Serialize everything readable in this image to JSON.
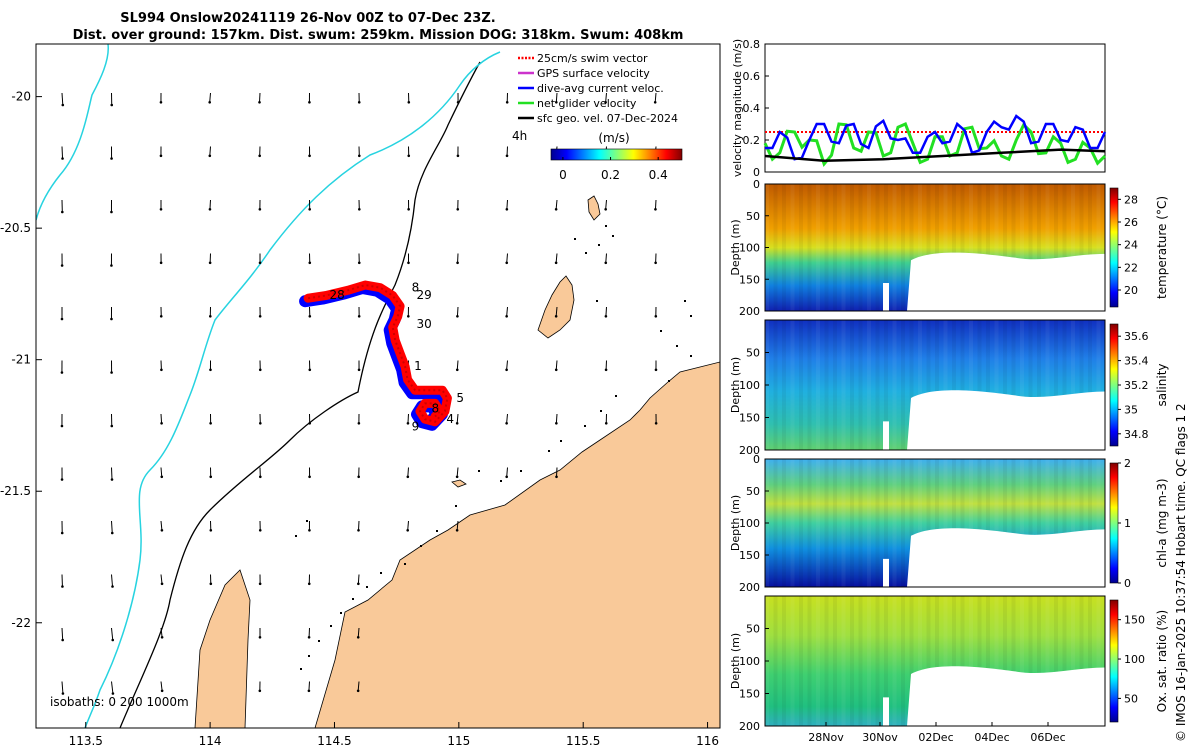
{
  "header": {
    "title_line1": "SL994 Onslow20241119 26-Nov 00Z to 07-Dec 23Z.",
    "title_line2": "Dist. over ground: 157km. Dist. swum: 259km. Mission DOG: 318km. Swum: 408km"
  },
  "side_credit": "© IMOS 16-Jan-2025 10:37:54 Hobart time. QC flags 1  2",
  "colors": {
    "land": "#f9c999",
    "coast_line": "#000000",
    "isobath_200": "#000000",
    "isobath_1000": "#27d3e0",
    "track_swim": "#ff0000",
    "track_current": "#0000ff",
    "velocity_green": "#22e022"
  },
  "chart_data": [
    {
      "type": "map",
      "name": "track-map",
      "x_ticks": [
        "113.5",
        "114",
        "114.5",
        "115",
        "115.5",
        "116"
      ],
      "xlim": [
        113.3,
        116.05
      ],
      "y_ticks": [
        "-20",
        "-20.5",
        "-21",
        "-21.5",
        "-22"
      ],
      "ylim": [
        -22.4,
        -19.8
      ],
      "legend": {
        "items": [
          {
            "label": "25cm/s swim vector",
            "color": "#ff0000",
            "style": "dotted"
          },
          {
            "label": "GPS surface velocity",
            "color": "#cc33cc",
            "style": "solid"
          },
          {
            "label": "dive-avg current veloc.",
            "color": "#0000ff",
            "style": "solid"
          },
          {
            "label": "net glider velocity",
            "color": "#22e022",
            "style": "solid"
          },
          {
            "label": "sfc geo. vel. 07-Dec-2024",
            "color": "#000000",
            "style": "solid"
          }
        ],
        "interval_label": "4h"
      },
      "colorbar": {
        "label": "(m/s)",
        "ticks": [
          "0",
          "0.2",
          "0.4"
        ],
        "range": [
          -0.05,
          0.5
        ]
      },
      "isobath_label": "isobaths: 0   200  1000m",
      "day_labels": [
        {
          "text": "28",
          "lon": 114.48,
          "lat": -20.77
        },
        {
          "text": "8",
          "lon": 114.81,
          "lat": -20.74
        },
        {
          "text": "29",
          "lon": 114.83,
          "lat": -20.77
        },
        {
          "text": "30",
          "lon": 114.83,
          "lat": -20.88
        },
        {
          "text": "1",
          "lon": 114.82,
          "lat": -21.04
        },
        {
          "text": "5",
          "lon": 114.99,
          "lat": -21.16
        },
        {
          "text": "8",
          "lon": 114.89,
          "lat": -21.2
        },
        {
          "text": "4",
          "lon": 114.95,
          "lat": -21.24
        },
        {
          "text": "9",
          "lon": 114.81,
          "lat": -21.27
        }
      ],
      "track": [
        [
          114.39,
          -20.77
        ],
        [
          114.46,
          -20.76
        ],
        [
          114.55,
          -20.74
        ],
        [
          114.62,
          -20.72
        ],
        [
          114.68,
          -20.73
        ],
        [
          114.73,
          -20.76
        ],
        [
          114.76,
          -20.8
        ],
        [
          114.75,
          -20.84
        ],
        [
          114.73,
          -20.88
        ],
        [
          114.74,
          -20.93
        ],
        [
          114.76,
          -20.98
        ],
        [
          114.78,
          -21.03
        ],
        [
          114.79,
          -21.08
        ],
        [
          114.82,
          -21.12
        ],
        [
          114.87,
          -21.12
        ],
        [
          114.93,
          -21.12
        ],
        [
          114.95,
          -21.15
        ],
        [
          114.94,
          -21.2
        ],
        [
          114.9,
          -21.24
        ],
        [
          114.86,
          -21.23
        ],
        [
          114.84,
          -21.2
        ],
        [
          114.86,
          -21.17
        ],
        [
          114.9,
          -21.17
        ],
        [
          114.92,
          -21.2
        ],
        [
          114.9,
          -21.22
        ]
      ]
    },
    {
      "type": "line",
      "name": "velocity-magnitude",
      "ylabel": "velocity magnitude (m/s)",
      "y_ticks": [
        "0",
        "0.2",
        "0.4",
        "0.6",
        "0.8"
      ],
      "ylim": [
        0,
        0.8
      ],
      "xlim": [
        26,
        37.5
      ],
      "series": [
        {
          "name": "25cm/s swim vector",
          "color": "#ff0000",
          "values": [
            0.25,
            0.25
          ]
        },
        {
          "name": "dive-avg current veloc.",
          "color": "#0000ff",
          "x": [
            26,
            26.5,
            27,
            27.5,
            28,
            28.5,
            29,
            29.5,
            30,
            30.5,
            31,
            31.5,
            32,
            32.5,
            33,
            33.5,
            34,
            34.5,
            35,
            35.5,
            36,
            36.5,
            37,
            37.5
          ],
          "values": [
            0.15,
            0.25,
            0.08,
            0.2,
            0.3,
            0.18,
            0.3,
            0.15,
            0.32,
            0.2,
            0.12,
            0.22,
            0.18,
            0.3,
            0.12,
            0.25,
            0.28,
            0.35,
            0.18,
            0.3,
            0.2,
            0.28,
            0.15,
            0.25
          ]
        },
        {
          "name": "net glider velocity",
          "color": "#22e022",
          "x": [
            26,
            26.5,
            27,
            27.5,
            28,
            28.5,
            29,
            29.5,
            30,
            30.5,
            31,
            31.5,
            32,
            32.5,
            33,
            33.5,
            34,
            34.5,
            35,
            35.5,
            36,
            36.5,
            37,
            37.5
          ],
          "values": [
            0.18,
            0.12,
            0.25,
            0.2,
            0.05,
            0.3,
            0.15,
            0.25,
            0.1,
            0.28,
            0.18,
            0.08,
            0.22,
            0.12,
            0.28,
            0.15,
            0.1,
            0.2,
            0.25,
            0.12,
            0.18,
            0.08,
            0.15,
            0.1
          ]
        },
        {
          "name": "sfc geo. vel.",
          "color": "#000000",
          "x": [
            26,
            28,
            30,
            32,
            34,
            36,
            37.5
          ],
          "values": [
            0.1,
            0.07,
            0.08,
            0.1,
            0.12,
            0.14,
            0.13
          ]
        }
      ]
    },
    {
      "type": "heatmap",
      "name": "temperature-section",
      "ylabel": "Depth (m)",
      "y_ticks": [
        "0",
        "50",
        "100",
        "150",
        "200"
      ],
      "cbar_label": "temperature (°C)",
      "cbar_ticks": [
        "28",
        "26",
        "24",
        "22",
        "20"
      ],
      "cbar_range": [
        18.5,
        29
      ]
    },
    {
      "type": "heatmap",
      "name": "salinity-section",
      "ylabel": "Depth (m)",
      "y_ticks": [
        "50",
        "100",
        "150",
        "200"
      ],
      "cbar_label": "salinity",
      "cbar_ticks": [
        "35.6",
        "35.4",
        "35.2",
        "35",
        "34.8"
      ],
      "cbar_range": [
        34.7,
        35.7
      ]
    },
    {
      "type": "heatmap",
      "name": "chla-section",
      "ylabel": "Depth (m)",
      "y_ticks": [
        "0",
        "50",
        "100",
        "150",
        "200"
      ],
      "cbar_label": "chl-a (mg m-3)",
      "cbar_ticks": [
        "2",
        "1",
        "0"
      ],
      "cbar_range": [
        0,
        2
      ]
    },
    {
      "type": "heatmap",
      "name": "oxygen-section",
      "ylabel": "Depth (m)",
      "y_ticks": [
        "50",
        "100",
        "150",
        "200"
      ],
      "cbar_label": "Ox. sat. ratio (%)",
      "cbar_ticks": [
        "150",
        "100",
        "50"
      ],
      "cbar_range": [
        20,
        175
      ],
      "x_ticks": [
        "28Nov",
        "30Nov",
        "02Dec",
        "04Dec",
        "06Dec"
      ]
    }
  ]
}
